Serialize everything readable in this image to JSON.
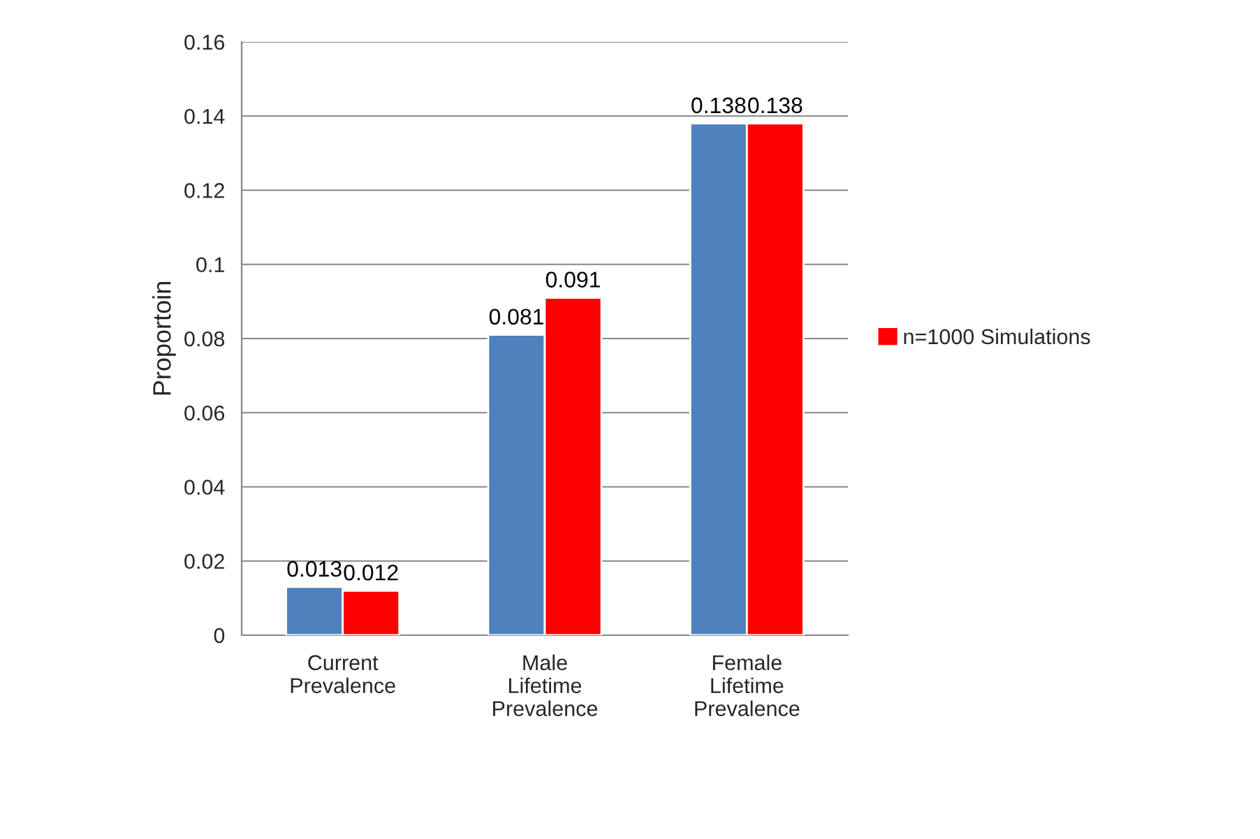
{
  "chart_data": {
    "type": "bar",
    "ylabel": "Proportoin",
    "categories": [
      "Current\nPrevalence",
      "Male\nLifetime\nPrevalence",
      "Female\nLifetime\nPrevalence"
    ],
    "series": [
      {
        "color": "#4f81bd",
        "values": [
          0.013,
          0.081,
          0.138
        ]
      },
      {
        "name": "n=1000 Simulations",
        "color": "#ff0000",
        "values": [
          0.012,
          0.091,
          0.138
        ]
      }
    ],
    "ylim": [
      0,
      0.16
    ],
    "yticks": [
      0,
      0.02,
      0.04,
      0.06,
      0.08,
      0.1,
      0.12,
      0.14,
      0.16
    ],
    "grid": "y",
    "legend": "right",
    "data_labels": true
  }
}
